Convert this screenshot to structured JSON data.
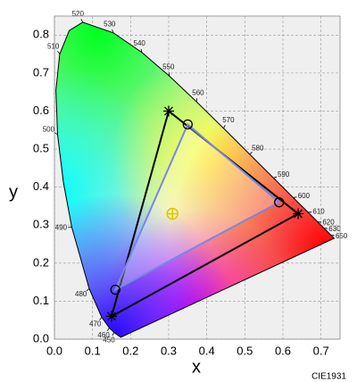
{
  "chart_data": {
    "type": "chromaticity",
    "x_label": "x",
    "y_label": "y",
    "caption": "CIE1931",
    "xlim": [
      0,
      0.75
    ],
    "ylim": [
      0,
      0.85
    ],
    "xticks": [
      {
        "value": 0,
        "label": "0.0"
      },
      0.1,
      0.2,
      0.3,
      0.4,
      0.5,
      0.6,
      0.7
    ],
    "yticks": [
      {
        "value": 0,
        "label": "0.0"
      },
      0.1,
      0.2,
      0.3,
      0.4,
      0.5,
      0.6,
      0.7,
      0.8
    ],
    "grid": true,
    "locus": {
      "labels": [
        null,
        "450",
        "460",
        "470",
        "480",
        "490",
        null,
        "500",
        null,
        "510",
        null,
        "520",
        "530",
        "540",
        "550",
        "560",
        "570",
        "580",
        "590",
        "600",
        "610",
        "620",
        "630",
        "650",
        null
      ],
      "x": [
        0.1741,
        0.1566,
        0.144,
        0.1241,
        0.0913,
        0.0454,
        0.0235,
        0.0082,
        0.0039,
        0.0139,
        0.0389,
        0.0743,
        0.1547,
        0.2296,
        0.3016,
        0.3731,
        0.4441,
        0.5125,
        0.5752,
        0.627,
        0.6658,
        0.6915,
        0.7079,
        0.726,
        0.7347
      ],
      "y": [
        0.005,
        0.0177,
        0.0297,
        0.0578,
        0.1327,
        0.295,
        0.4127,
        0.5384,
        0.6548,
        0.7502,
        0.812,
        0.8338,
        0.8059,
        0.7543,
        0.6923,
        0.6245,
        0.5547,
        0.4866,
        0.4242,
        0.3725,
        0.334,
        0.3083,
        0.292,
        0.274,
        0.2653
      ]
    },
    "gamuts": [
      {
        "color": "#000000",
        "marker": "star",
        "x": [
          0.64,
          0.3,
          0.15
        ],
        "y": [
          0.33,
          0.6,
          0.06
        ]
      },
      {
        "color": "#7a86e0",
        "marker": "circle",
        "x": [
          0.59,
          0.35,
          0.16
        ],
        "y": [
          0.36,
          0.565,
          0.13
        ]
      }
    ],
    "white_point": {
      "color": "#d8c800",
      "x": 0.31,
      "y": 0.33
    }
  }
}
